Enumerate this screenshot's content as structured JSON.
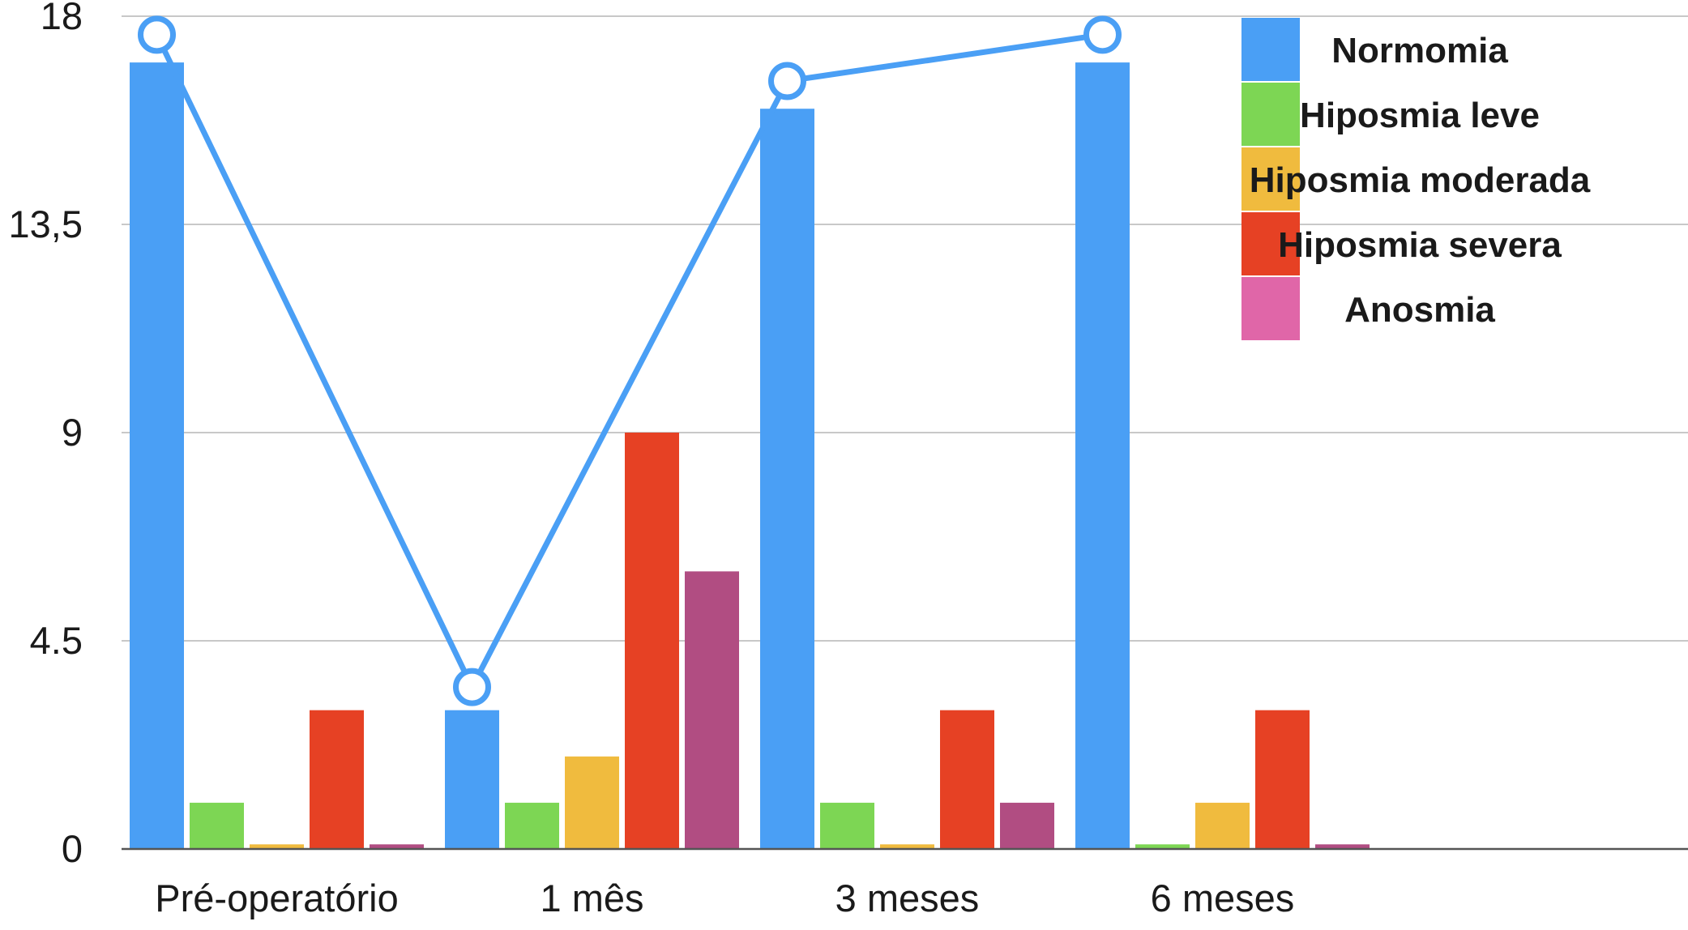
{
  "chart_data": {
    "type": "bar",
    "title": "",
    "xlabel": "",
    "ylabel": "",
    "categories": [
      "Pré-operatório",
      "1 mês",
      "3 meses",
      "6 meses"
    ],
    "yticks": [
      "0",
      "4.5",
      "9",
      "13,5",
      "18"
    ],
    "ylim": [
      0,
      18
    ],
    "grid": true,
    "legend_position": "top-right",
    "series": [
      {
        "name": "Normomia",
        "color": "#4a9ff5",
        "values": [
          17,
          3,
          16,
          17
        ]
      },
      {
        "name": "Hiposmia leve",
        "color": "#7dd654",
        "values": [
          1,
          1,
          1,
          0.1
        ]
      },
      {
        "name": "Hiposmia moderada",
        "color": "#f0bb3e",
        "values": [
          0.1,
          2,
          0.1,
          1
        ]
      },
      {
        "name": "Hiposmia severa",
        "color": "#e64124",
        "values": [
          3,
          9,
          3,
          3
        ]
      },
      {
        "name": "Anosmia",
        "color": "#b14d82",
        "legend_color": "#e066a8",
        "values": [
          0.1,
          6,
          1,
          0.1
        ]
      }
    ],
    "line": {
      "color": "#4a9ff5",
      "values": [
        17.6,
        3.5,
        16.6,
        17.6
      ]
    }
  }
}
